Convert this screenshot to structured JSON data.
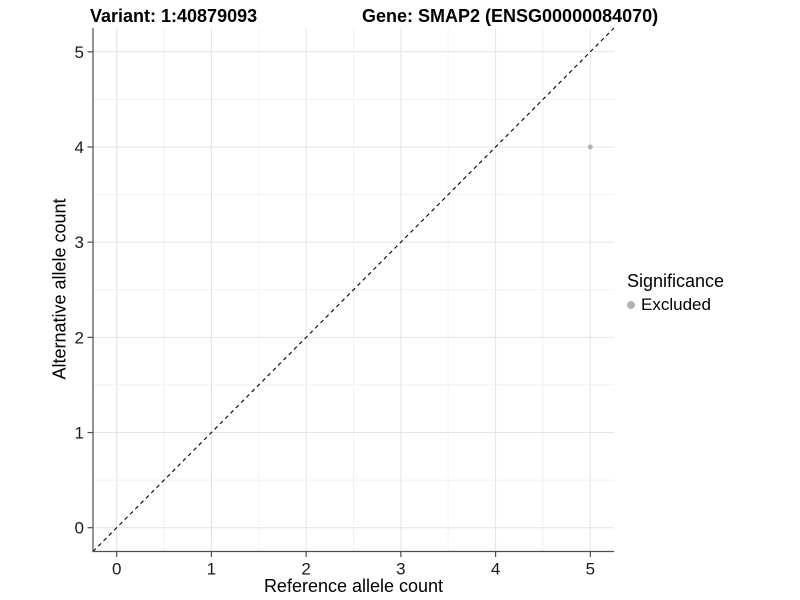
{
  "chart_data": {
    "type": "scatter",
    "title_parts": [
      "Variant: 1:40879093",
      "Gene: SMAP2 (ENSG00000084070)"
    ],
    "xlabel": "Reference allele count",
    "ylabel": "Alternative allele count",
    "xlim": [
      -0.25,
      5.25
    ],
    "ylim": [
      -0.25,
      5.25
    ],
    "x_ticks": [
      0,
      1,
      2,
      3,
      4,
      5
    ],
    "y_ticks": [
      0,
      1,
      2,
      3,
      4,
      5
    ],
    "x_minor": [
      0.5,
      1.5,
      2.5,
      3.5,
      4.5
    ],
    "y_minor": [
      0.5,
      1.5,
      2.5,
      3.5,
      4.5
    ],
    "grid": "major+minor",
    "series": [
      {
        "name": "Excluded",
        "color": "#b3b3b3",
        "point_radius": 2.5,
        "points": [
          {
            "x": 5,
            "y": 4
          }
        ]
      }
    ],
    "reference_line": {
      "kind": "identity y=x",
      "style": "dashed",
      "color": "#000000"
    },
    "legend": {
      "title": "Significance",
      "position": "right",
      "items": [
        {
          "label": "Excluded",
          "color": "#b3b3b3"
        }
      ]
    },
    "colors": {
      "background": "#ffffff",
      "grid_major": "#e4e4e4",
      "grid_minor": "#f1f1f1",
      "axis_line": "#4d4d4d",
      "tick_mark": "#4d4d4d",
      "tick_label": "#1a1a1a",
      "title": "#000000"
    }
  }
}
